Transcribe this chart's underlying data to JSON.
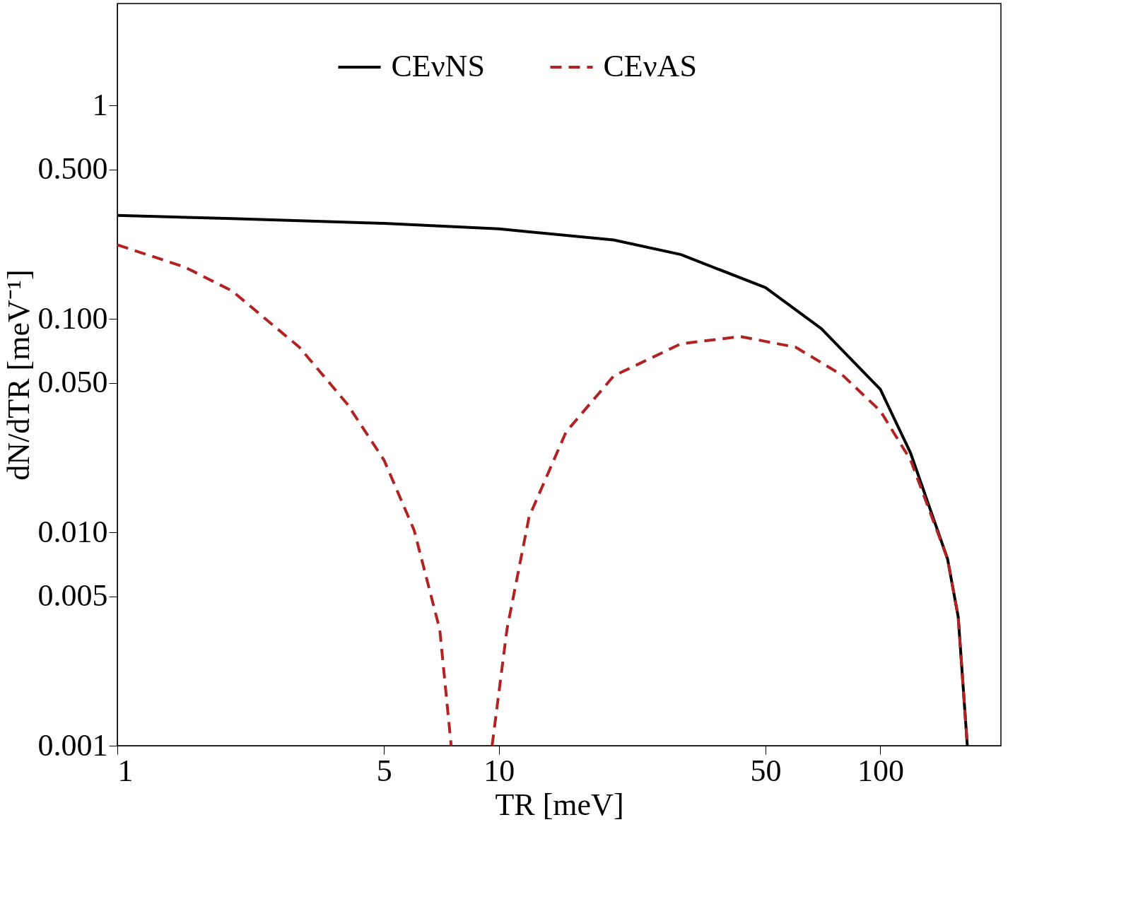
{
  "chart_data": {
    "type": "line",
    "xlabel": "TR [meV]",
    "ylabel": "dN/dTR [meV⁻¹]",
    "log": "xy",
    "xlim": [
      1,
      207
    ],
    "ylim": [
      0.001,
      3
    ],
    "xticks": [
      1,
      5,
      10,
      50,
      100
    ],
    "yticks": [
      {
        "value": 0.001,
        "label": "0.001"
      },
      {
        "value": 0.005,
        "label": "0.005"
      },
      {
        "value": 0.01,
        "label": "0.010"
      },
      {
        "value": 0.05,
        "label": "0.050"
      },
      {
        "value": 0.1,
        "label": "0.100"
      },
      {
        "value": 0.5,
        "label": "0.500"
      },
      1
    ],
    "legend": "top",
    "grid": false,
    "series": [
      {
        "name": "CEνNS",
        "color": "#000000",
        "line_style": "solid",
        "x": [
          1,
          2,
          5,
          10,
          20,
          30,
          50,
          70,
          100,
          120,
          150,
          160,
          169
        ],
        "values": [
          0.305,
          0.295,
          0.28,
          0.264,
          0.234,
          0.2,
          0.14,
          0.09,
          0.0467,
          0.0235,
          0.0075,
          0.004,
          0.001
        ]
      },
      {
        "name": "CEνAS",
        "color": "#b22222",
        "line_style": "dashed",
        "x": [
          1,
          1.5,
          2,
          3,
          4,
          5,
          6,
          7,
          7.5,
          8.5,
          9.6,
          10.5,
          12,
          15,
          20,
          30,
          43,
          60,
          80,
          100,
          120,
          150,
          160,
          169
        ],
        "values": [
          0.222,
          0.175,
          0.135,
          0.0736,
          0.04,
          0.0218,
          0.0102,
          0.0035,
          0.001,
          null,
          0.001,
          0.0035,
          0.0118,
          0.0295,
          0.054,
          0.0764,
          0.0826,
          0.0736,
          0.054,
          0.037,
          0.0218,
          0.0075,
          0.004,
          0.001
        ]
      }
    ]
  }
}
